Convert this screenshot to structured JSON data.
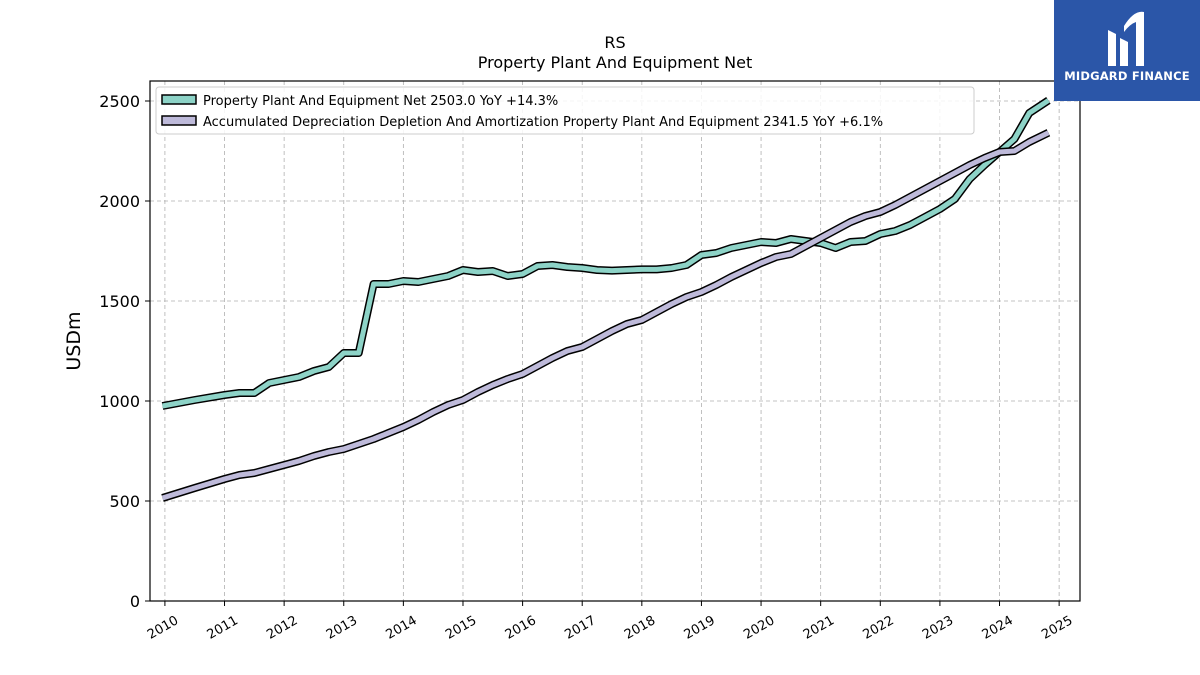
{
  "chart_data": {
    "type": "line",
    "title": "RS",
    "subtitle": "Property Plant And Equipment Net",
    "xlabel": "",
    "ylabel": "USDm",
    "ylim": [
      0,
      2600
    ],
    "xlim": [
      2009.75,
      2025.35
    ],
    "yticks": [
      0,
      500,
      1000,
      1500,
      2000,
      2500
    ],
    "xticks": [
      "2010",
      "2011",
      "2012",
      "2013",
      "2014",
      "2015",
      "2016",
      "2017",
      "2018",
      "2019",
      "2020",
      "2021",
      "2022",
      "2023",
      "2024",
      "2025"
    ],
    "grid": true,
    "legend_position": "top-left",
    "series": [
      {
        "name": "Property Plant And Equipment Net  2503.0 YoY +14.3%",
        "color": "#8dd3c7",
        "points": [
          [
            2009.96,
            975
          ],
          [
            2010.5,
            1005
          ],
          [
            2011.0,
            1030
          ],
          [
            2011.25,
            1040
          ],
          [
            2011.5,
            1040
          ],
          [
            2011.75,
            1090
          ],
          [
            2012.0,
            1105
          ],
          [
            2012.25,
            1120
          ],
          [
            2012.5,
            1150
          ],
          [
            2012.75,
            1170
          ],
          [
            2013.0,
            1240
          ],
          [
            2013.25,
            1240
          ],
          [
            2013.5,
            1585
          ],
          [
            2013.75,
            1585
          ],
          [
            2014.0,
            1600
          ],
          [
            2014.25,
            1595
          ],
          [
            2014.5,
            1610
          ],
          [
            2014.75,
            1625
          ],
          [
            2015.0,
            1655
          ],
          [
            2015.25,
            1645
          ],
          [
            2015.5,
            1650
          ],
          [
            2015.75,
            1625
          ],
          [
            2016.0,
            1635
          ],
          [
            2016.25,
            1675
          ],
          [
            2016.5,
            1680
          ],
          [
            2016.75,
            1670
          ],
          [
            2017.0,
            1665
          ],
          [
            2017.25,
            1655
          ],
          [
            2017.5,
            1652
          ],
          [
            2017.75,
            1655
          ],
          [
            2018.0,
            1658
          ],
          [
            2018.25,
            1658
          ],
          [
            2018.5,
            1665
          ],
          [
            2018.75,
            1680
          ],
          [
            2019.0,
            1730
          ],
          [
            2019.25,
            1740
          ],
          [
            2019.5,
            1765
          ],
          [
            2019.75,
            1780
          ],
          [
            2020.0,
            1795
          ],
          [
            2020.25,
            1790
          ],
          [
            2020.5,
            1810
          ],
          [
            2020.75,
            1800
          ],
          [
            2021.0,
            1790
          ],
          [
            2021.25,
            1765
          ],
          [
            2021.5,
            1795
          ],
          [
            2021.75,
            1800
          ],
          [
            2022.0,
            1835
          ],
          [
            2022.25,
            1850
          ],
          [
            2022.5,
            1880
          ],
          [
            2022.75,
            1920
          ],
          [
            2023.0,
            1960
          ],
          [
            2023.25,
            2010
          ],
          [
            2023.5,
            2110
          ],
          [
            2023.75,
            2180
          ],
          [
            2024.0,
            2245
          ],
          [
            2024.25,
            2310
          ],
          [
            2024.5,
            2440
          ],
          [
            2024.82,
            2503
          ]
        ]
      },
      {
        "name": "Accumulated Depreciation Depletion And Amortization Property Plant And Equipment  2341.5 YoY +6.1%",
        "color": "#bebada",
        "points": [
          [
            2009.96,
            515
          ],
          [
            2010.5,
            565
          ],
          [
            2011.0,
            610
          ],
          [
            2011.25,
            630
          ],
          [
            2011.5,
            640
          ],
          [
            2011.75,
            660
          ],
          [
            2012.0,
            680
          ],
          [
            2012.25,
            700
          ],
          [
            2012.5,
            725
          ],
          [
            2012.75,
            745
          ],
          [
            2013.0,
            760
          ],
          [
            2013.25,
            785
          ],
          [
            2013.5,
            810
          ],
          [
            2013.75,
            840
          ],
          [
            2014.0,
            870
          ],
          [
            2014.25,
            905
          ],
          [
            2014.5,
            945
          ],
          [
            2014.75,
            980
          ],
          [
            2015.0,
            1005
          ],
          [
            2015.25,
            1045
          ],
          [
            2015.5,
            1080
          ],
          [
            2015.75,
            1110
          ],
          [
            2016.0,
            1135
          ],
          [
            2016.25,
            1175
          ],
          [
            2016.5,
            1215
          ],
          [
            2016.75,
            1250
          ],
          [
            2017.0,
            1270
          ],
          [
            2017.25,
            1310
          ],
          [
            2017.5,
            1350
          ],
          [
            2017.75,
            1385
          ],
          [
            2018.0,
            1405
          ],
          [
            2018.25,
            1445
          ],
          [
            2018.5,
            1485
          ],
          [
            2018.75,
            1520
          ],
          [
            2019.0,
            1545
          ],
          [
            2019.25,
            1580
          ],
          [
            2019.5,
            1620
          ],
          [
            2019.75,
            1655
          ],
          [
            2020.0,
            1690
          ],
          [
            2020.25,
            1720
          ],
          [
            2020.5,
            1735
          ],
          [
            2020.75,
            1775
          ],
          [
            2021.0,
            1815
          ],
          [
            2021.25,
            1855
          ],
          [
            2021.5,
            1895
          ],
          [
            2021.75,
            1925
          ],
          [
            2022.0,
            1945
          ],
          [
            2022.25,
            1980
          ],
          [
            2022.5,
            2020
          ],
          [
            2022.75,
            2060
          ],
          [
            2023.0,
            2100
          ],
          [
            2023.25,
            2140
          ],
          [
            2023.5,
            2180
          ],
          [
            2023.75,
            2215
          ],
          [
            2024.0,
            2245
          ],
          [
            2024.25,
            2250
          ],
          [
            2024.5,
            2295
          ],
          [
            2024.82,
            2341.5
          ]
        ]
      }
    ]
  },
  "brand": {
    "name": "MIDGARD FINANCE",
    "background": "#2b56a8"
  }
}
